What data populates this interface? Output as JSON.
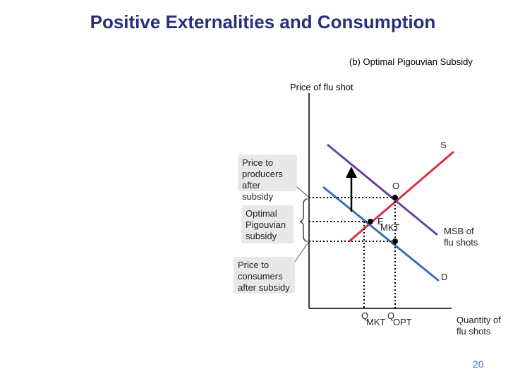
{
  "title": "Positive Externalities and Consumption",
  "subtitle": "(b) Optimal Pigouvian Subsidy",
  "y_axis_label": "Price of flu shot",
  "x_axis_label": [
    "Quantity of",
    "flu shots"
  ],
  "labels": {
    "supply": "S",
    "demand": "D",
    "msb": [
      "MSB of",
      "flu shots"
    ],
    "point_optimal": "O",
    "point_market": "E",
    "point_market_sub": "MKT",
    "q_mkt_q": "Q",
    "q_mkt_sub": "MKT",
    "q_opt_q": "Q",
    "q_opt_sub": "OPT"
  },
  "annotations": {
    "producers": [
      "Price to",
      "producers",
      "after subsidy"
    ],
    "subsidy": [
      "Optimal",
      "Pigouvian",
      "subsidy"
    ],
    "consumers": [
      "Price to",
      "consumers",
      "after subsidy"
    ]
  },
  "colors": {
    "title": "#2b2f7a",
    "supply": "#d8323f",
    "msb": "#6b3fa0",
    "demand": "#3b6fb6",
    "annotation_bg": "#e8e8e8"
  },
  "page_number": "20"
}
